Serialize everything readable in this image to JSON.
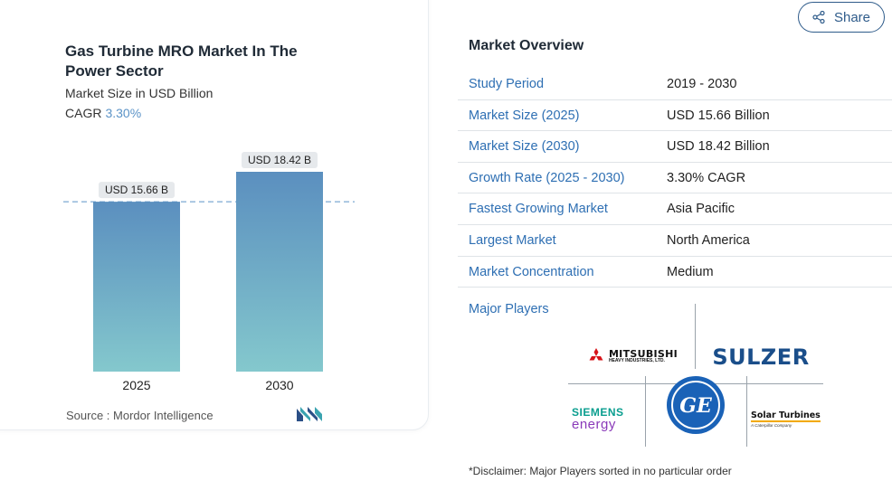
{
  "chart_card": {
    "title": "Gas Turbine MRO Market In The Power Sector",
    "subtitle": "Market Size in USD Billion",
    "cagr_label": "CAGR",
    "cagr_value": "3.30%",
    "source": "Source :  Mordor Intelligence",
    "source_logo": "mordor-intelligence-logo"
  },
  "chart_data": {
    "type": "bar",
    "categories": [
      "2025",
      "2030"
    ],
    "values": [
      15.66,
      18.42
    ],
    "data_labels": [
      "USD 15.66 B",
      "USD 18.42 B"
    ],
    "title": "Gas Turbine MRO Market In The Power Sector",
    "subtitle": "Market Size in USD Billion",
    "xlabel": "",
    "ylabel": "",
    "grid": false,
    "reference_line": 15.66,
    "colors": {
      "bar_top": "#5b8fbf",
      "bar_bottom": "#84c8cd",
      "label_bg": "#e6e9ec",
      "reference": "#5b93c7"
    }
  },
  "share": {
    "label": "Share",
    "icon": "share-icon",
    "color": "#2e5b8a"
  },
  "overview": {
    "title": "Market Overview",
    "rows": [
      {
        "key": "Study Period",
        "value": "2019 - 2030"
      },
      {
        "key": "Market Size (2025)",
        "value": "USD 15.66 Billion"
      },
      {
        "key": "Market Size (2030)",
        "value": "USD 18.42 Billion"
      },
      {
        "key": "Growth Rate (2025 - 2030)",
        "value": "3.30% CAGR"
      },
      {
        "key": "Fastest Growing Market",
        "value": "Asia Pacific"
      },
      {
        "key": "Largest Market",
        "value": "North America"
      },
      {
        "key": "Market Concentration",
        "value": "Medium"
      }
    ]
  },
  "major_players": {
    "label": "Major Players",
    "logos": [
      {
        "name": "Mitsubishi Heavy Industries",
        "text": "MITSUBISHI",
        "subtext": "HEAVY INDUSTRIES, LTD."
      },
      {
        "name": "Sulzer",
        "text": "SULZER"
      },
      {
        "name": "Siemens Energy",
        "text": "SIEMENS",
        "subtext": "energy"
      },
      {
        "name": "General Electric",
        "text": "GE"
      },
      {
        "name": "Solar Turbines",
        "text": "Solar Turbines",
        "subtext": "A Caterpillar Company"
      }
    ]
  },
  "disclaimer": "*Disclaimer: Major Players sorted in no particular order",
  "colors": {
    "accent": "#2e6fb3",
    "brand_navy": "#1a4e8a",
    "siemens_teal": "#0a9e8f"
  }
}
